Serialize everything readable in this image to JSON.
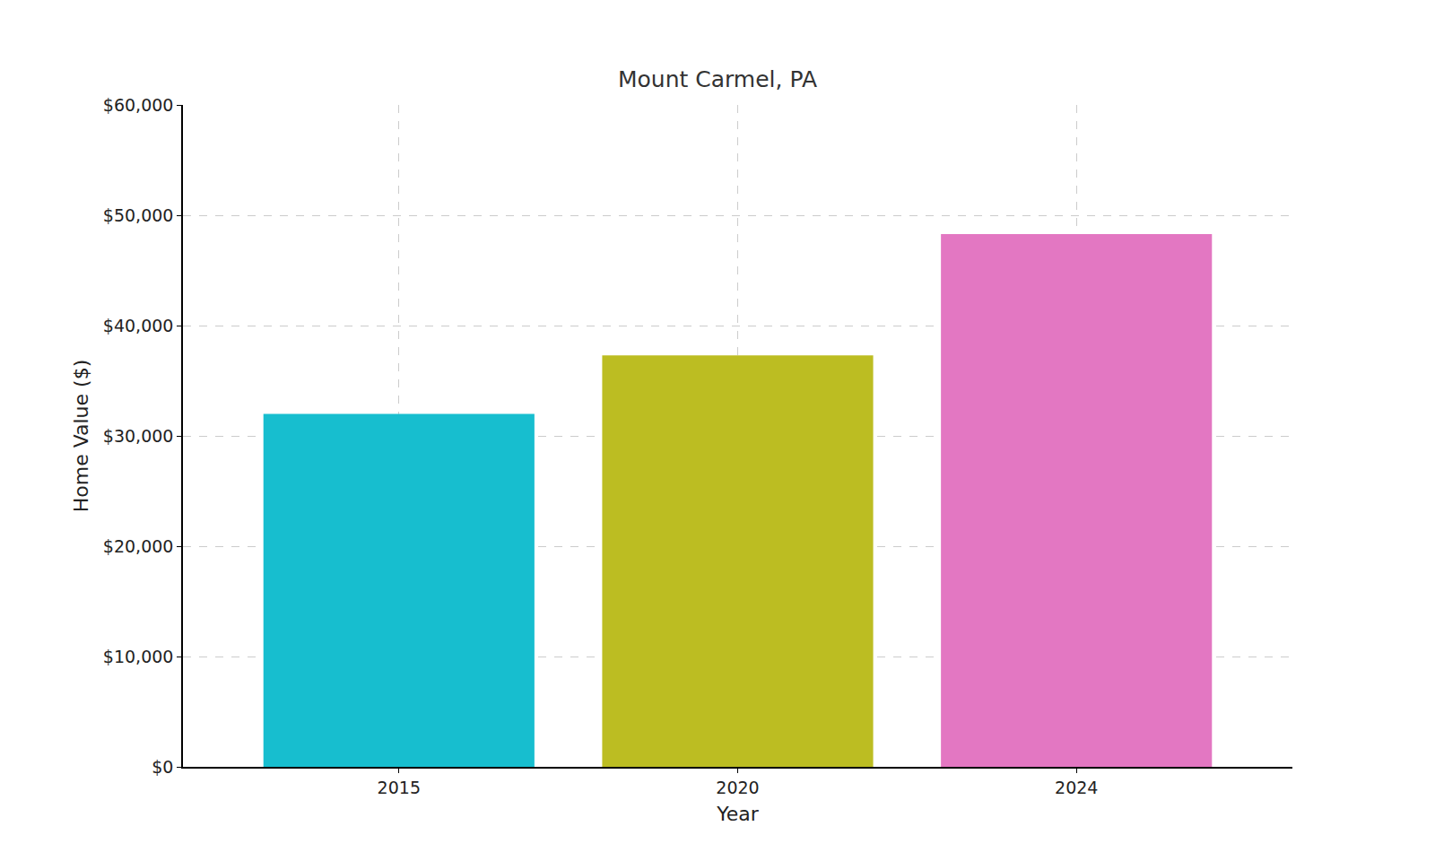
{
  "chart_data": {
    "type": "bar",
    "title": "Mount Carmel, PA",
    "x_label": "Year",
    "y_label": "Home Value ($)",
    "categories": [
      "2015",
      "2020",
      "2024"
    ],
    "values": [
      32000,
      37300,
      48300
    ],
    "colors": [
      "#17becf",
      "#bcbd22",
      "#e377c2"
    ],
    "ylim": [
      0,
      60000
    ],
    "yticks": [
      {
        "value": 0,
        "label": "$0"
      },
      {
        "value": 10000,
        "label": "$10,000"
      },
      {
        "value": 20000,
        "label": "$20,000"
      },
      {
        "value": 30000,
        "label": "$30,000"
      },
      {
        "value": 40000,
        "label": "$40,000"
      },
      {
        "value": 50000,
        "label": "$50,000"
      },
      {
        "value": 60000,
        "label": "$60,000"
      }
    ],
    "grid": true
  }
}
